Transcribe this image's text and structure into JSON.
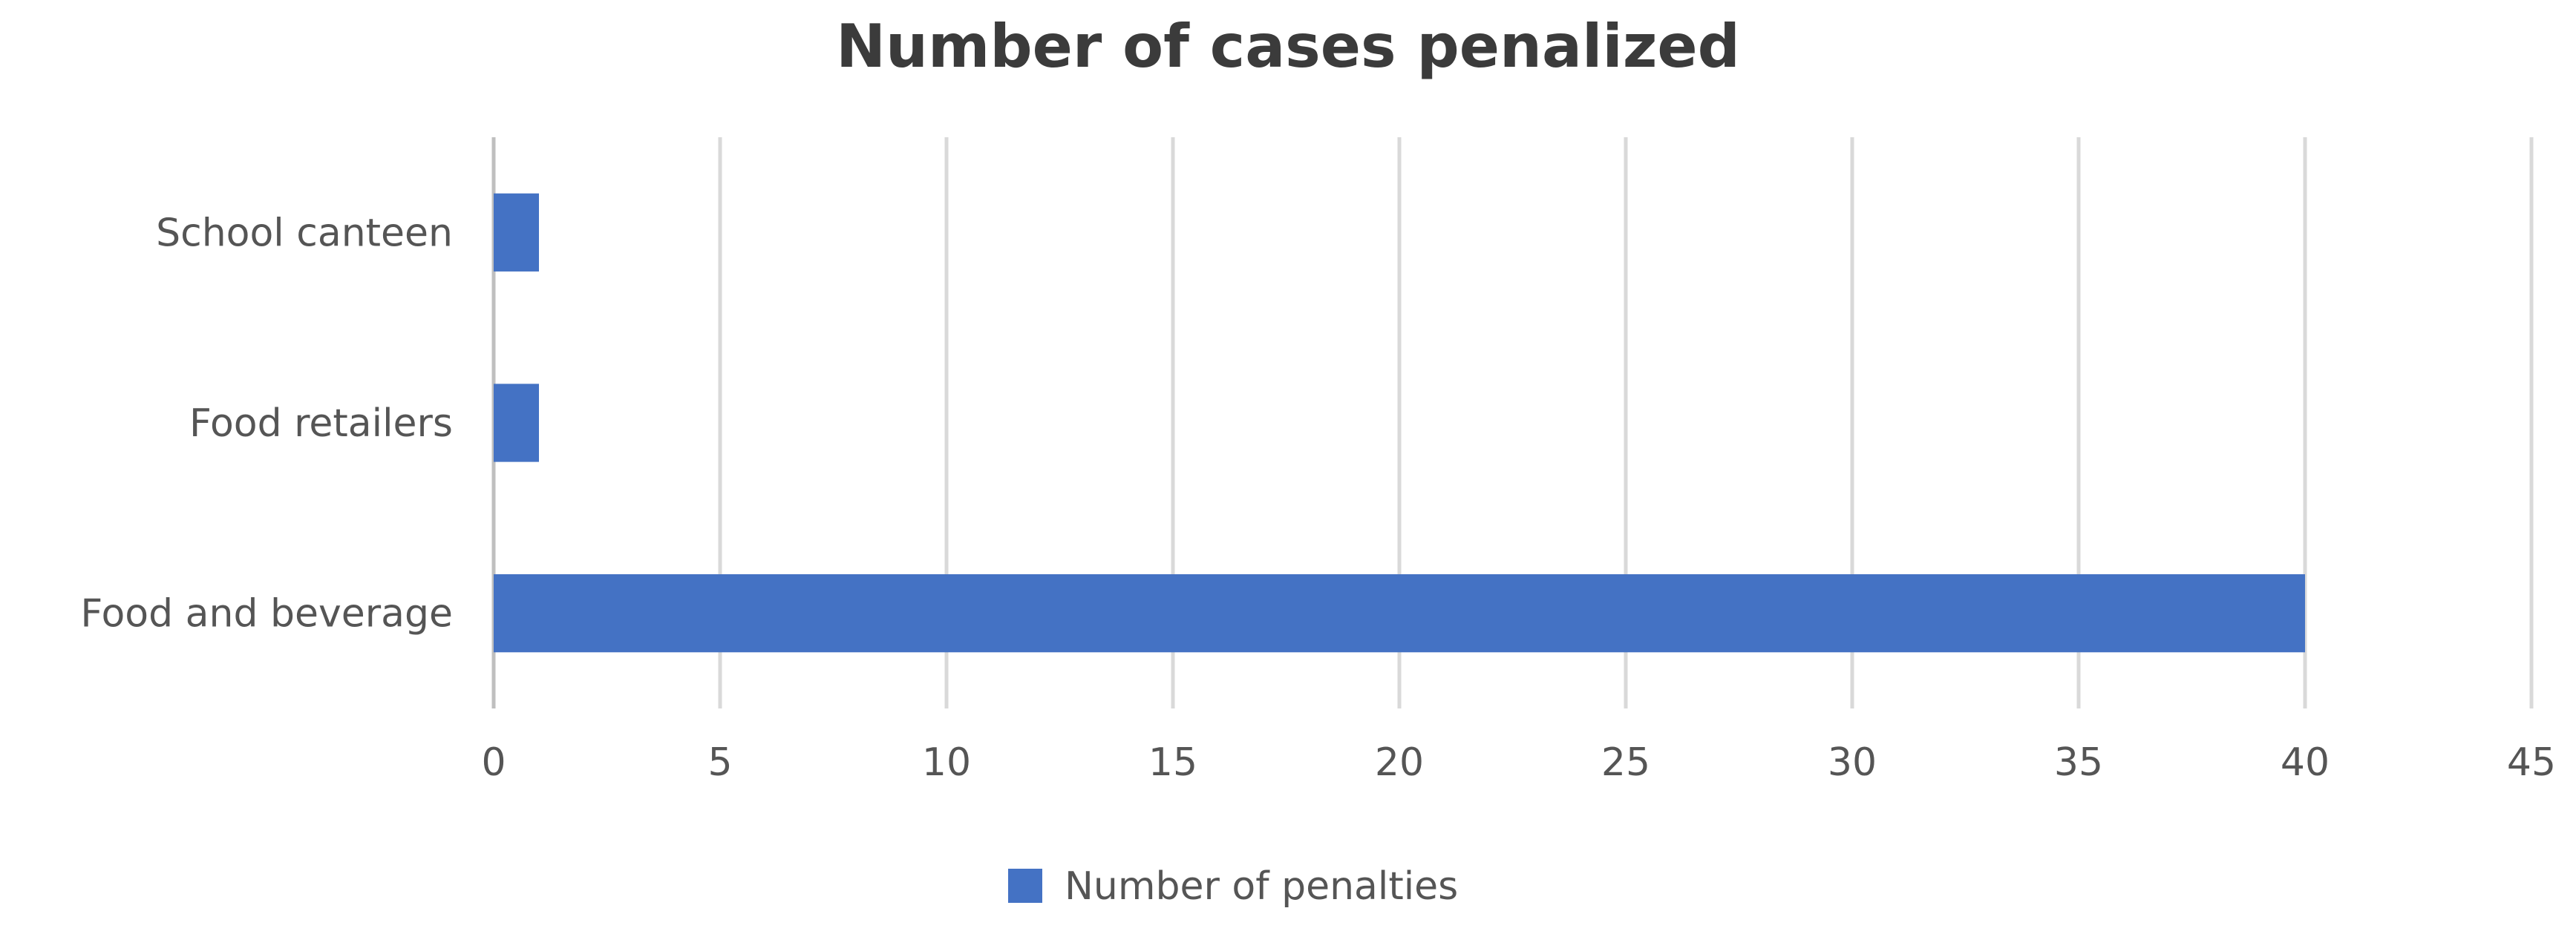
{
  "chart_data": {
    "type": "bar",
    "orientation": "horizontal",
    "title": "Number of cases penalized",
    "categories": [
      "School canteen",
      "Food retailers",
      "Food and beverage"
    ],
    "series": [
      {
        "name": "Number of penalties",
        "values": [
          1,
          1,
          40
        ],
        "color": "#4472c4"
      }
    ],
    "xlim": [
      0,
      45
    ],
    "xticks": [
      "0",
      "5",
      "10",
      "15",
      "20",
      "25",
      "30",
      "35",
      "40",
      "45"
    ],
    "grid": true,
    "legend_position": "bottom"
  }
}
